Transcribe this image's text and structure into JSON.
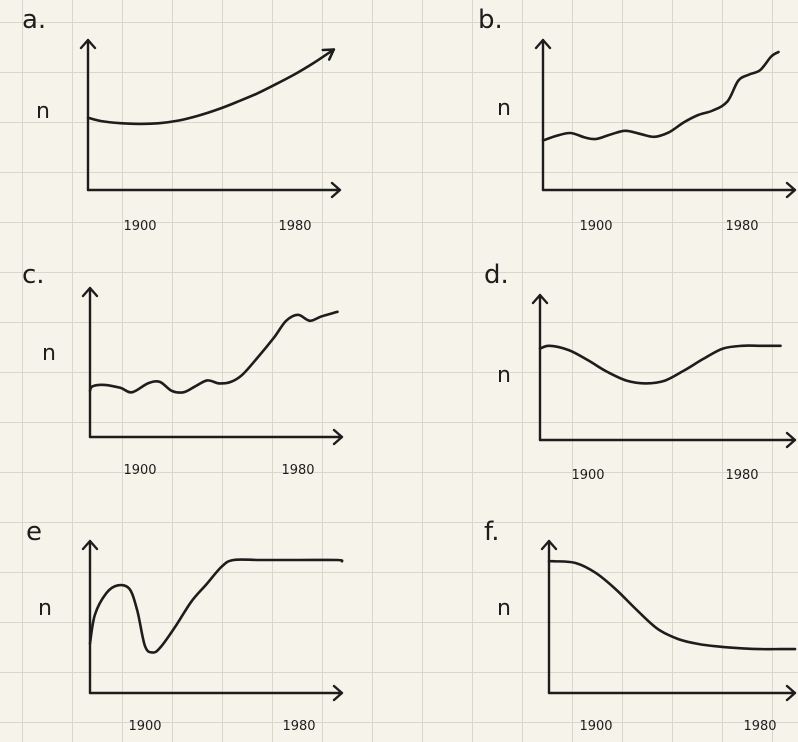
{
  "chart_data": [
    {
      "type": "line",
      "label": "a.",
      "ylabel": "n",
      "x_ticks": [
        "1900",
        "1980"
      ],
      "end_arrow": true,
      "x": [
        1870,
        1880,
        1890,
        1900,
        1910,
        1920,
        1930,
        1940,
        1950,
        1960,
        1970,
        1980,
        1990,
        2000
      ],
      "y": [
        5.3,
        5.05,
        4.9,
        4.85,
        4.9,
        5.1,
        5.45,
        5.9,
        6.45,
        7.05,
        7.75,
        8.5,
        9.35,
        10.3
      ],
      "ylim": [
        0,
        11
      ]
    },
    {
      "type": "line",
      "label": "b.",
      "ylabel": "n",
      "x_ticks": [
        "1900",
        "1980"
      ],
      "end_arrow": false,
      "x": [
        1870,
        1878,
        1886,
        1894,
        1900,
        1908,
        1916,
        1924,
        1932,
        1940,
        1948,
        1956,
        1964,
        1972,
        1978,
        1984,
        1990,
        1996,
        2000
      ],
      "y": [
        3.3,
        3.6,
        3.8,
        3.5,
        3.4,
        3.7,
        3.95,
        3.75,
        3.55,
        3.85,
        4.5,
        5.0,
        5.3,
        5.9,
        7.3,
        7.7,
        8.0,
        8.9,
        9.2
      ],
      "ylim": [
        0,
        10
      ]
    },
    {
      "type": "line",
      "label": "c.",
      "ylabel": "n",
      "x_ticks": [
        "1900",
        "1980"
      ],
      "end_arrow": false,
      "x": [
        1870,
        1876,
        1882,
        1890,
        1896,
        1904,
        1910,
        1916,
        1922,
        1928,
        1934,
        1940,
        1946,
        1952,
        1960,
        1968,
        1974,
        1980,
        1986,
        1992,
        2000
      ],
      "y": [
        3.1,
        3.4,
        3.5,
        3.3,
        3.0,
        3.6,
        3.7,
        3.1,
        3.0,
        3.4,
        3.8,
        3.6,
        3.7,
        4.2,
        5.4,
        6.7,
        7.8,
        8.2,
        7.8,
        8.1,
        8.4
      ],
      "ylim": [
        0,
        10
      ]
    },
    {
      "type": "line",
      "label": "d.",
      "ylabel": "n",
      "x_ticks": [
        "1900",
        "1980"
      ],
      "end_arrow": false,
      "x": [
        1870,
        1880,
        1890,
        1900,
        1910,
        1920,
        1930,
        1940,
        1950,
        1960,
        1970,
        1980,
        1990,
        2000
      ],
      "y": [
        6.3,
        6.5,
        6.2,
        5.5,
        4.7,
        4.1,
        3.9,
        4.1,
        4.8,
        5.6,
        6.3,
        6.5,
        6.5,
        6.5
      ],
      "ylim": [
        0,
        10
      ]
    },
    {
      "type": "line",
      "label": "e",
      "ylabel": "n",
      "x_ticks": [
        "1900",
        "1980"
      ],
      "end_arrow": false,
      "x": [
        1870,
        1874,
        1880,
        1886,
        1892,
        1896,
        1900,
        1904,
        1908,
        1916,
        1924,
        1932,
        1940,
        1946,
        1960,
        1980,
        2000,
        2005
      ],
      "y": [
        3.9,
        6.2,
        7.9,
        8.5,
        8.2,
        6.5,
        3.7,
        3.2,
        3.6,
        5.3,
        7.2,
        8.6,
        10.0,
        10.5,
        10.5,
        10.5,
        10.5,
        10.4
      ],
      "ylim": [
        0,
        12
      ]
    },
    {
      "type": "line",
      "label": "f.",
      "ylabel": "n",
      "x_ticks": [
        "1900",
        "1980"
      ],
      "end_arrow": false,
      "x": [
        1870,
        1880,
        1890,
        1900,
        1910,
        1920,
        1930,
        1940,
        1950,
        1960,
        1970,
        1980,
        1990,
        2000
      ],
      "y": [
        7.8,
        7.8,
        7.7,
        7.1,
        6.1,
        4.9,
        3.8,
        3.2,
        2.9,
        2.75,
        2.65,
        2.6,
        2.6,
        2.6
      ],
      "ylim": [
        0,
        9
      ]
    }
  ]
}
